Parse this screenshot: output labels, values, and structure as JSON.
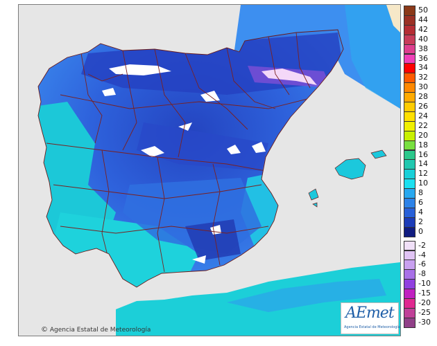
{
  "map": {
    "colors": {
      "sea": "#e6e6e6",
      "land_cold": "#2848c8",
      "land_mid": "#3a78e8",
      "land_warm": "#19c9d8",
      "snow": "#ffffff",
      "border": "#7a2020",
      "france": "#3d8ff0"
    }
  },
  "legend": {
    "positive": [
      {
        "label": "50",
        "color": "#8b3a1a"
      },
      {
        "label": "44",
        "color": "#9b3125"
      },
      {
        "label": "42",
        "color": "#b52d34"
      },
      {
        "label": "40",
        "color": "#c83c5a"
      },
      {
        "label": "38",
        "color": "#de3f8f"
      },
      {
        "label": "36",
        "color": "#f040b8"
      },
      {
        "label": "34",
        "color": "#ff0000"
      },
      {
        "label": "32",
        "color": "#ff5a00"
      },
      {
        "label": "30",
        "color": "#ff8800"
      },
      {
        "label": "28",
        "color": "#ffaa00"
      },
      {
        "label": "26",
        "color": "#ffcc00"
      },
      {
        "label": "24",
        "color": "#ffe000"
      },
      {
        "label": "22",
        "color": "#f0f000"
      },
      {
        "label": "20",
        "color": "#c8f000"
      },
      {
        "label": "18",
        "color": "#78e040"
      },
      {
        "label": "16",
        "color": "#2cc88c"
      },
      {
        "label": "14",
        "color": "#20c8b0"
      },
      {
        "label": "12",
        "color": "#18d0d8"
      },
      {
        "label": "10",
        "color": "#1ce0f0"
      },
      {
        "label": "8",
        "color": "#28a8f0"
      },
      {
        "label": "6",
        "color": "#2c82e8"
      },
      {
        "label": "4",
        "color": "#2860d8"
      },
      {
        "label": "2",
        "color": "#1c3cb8"
      },
      {
        "label": "0",
        "color": "#101c80"
      }
    ],
    "negative": [
      {
        "label": "-2",
        "color": "#f0e0f8"
      },
      {
        "label": "-4",
        "color": "#e0c4f4"
      },
      {
        "label": "-6",
        "color": "#c8a0f0"
      },
      {
        "label": "-8",
        "color": "#a870e8"
      },
      {
        "label": "-10",
        "color": "#9040e0"
      },
      {
        "label": "-15",
        "color": "#c020c0"
      },
      {
        "label": "-20",
        "color": "#e02890"
      },
      {
        "label": "-25",
        "color": "#c04098"
      },
      {
        "label": "-30",
        "color": "#904088"
      }
    ]
  },
  "credit": {
    "symbol": "©",
    "text": "Agencia Estatal de Meteorología"
  },
  "logo": {
    "text": "AEmet",
    "subtext": "Agencia Estatal de Meteorología"
  }
}
